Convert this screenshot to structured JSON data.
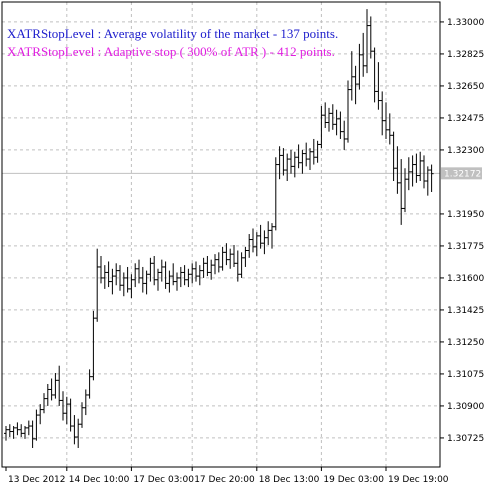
{
  "chart_data": {
    "type": "ohlc",
    "annotations": [
      {
        "text": "XATRStopLevel : Average volatility of the market  - 137 points.",
        "color": "#1c1ccc"
      },
      {
        "text": "XATRStopLevel : Adaptive stop ( 300% of ATR ) - 412 points.",
        "color": "#e01ee0"
      }
    ],
    "ylim": [
      1.30566,
      1.33109
    ],
    "yticks": [
      {
        "value": 1.33,
        "label": "1.33000"
      },
      {
        "value": 1.32825,
        "label": "1.32825"
      },
      {
        "value": 1.3265,
        "label": "1.32650"
      },
      {
        "value": 1.32475,
        "label": "1.32475"
      },
      {
        "value": 1.323,
        "label": "1.32300"
      },
      {
        "value": 1.3195,
        "label": "1.31950"
      },
      {
        "value": 1.31775,
        "label": "1.31775"
      },
      {
        "value": 1.316,
        "label": "1.31600"
      },
      {
        "value": 1.31425,
        "label": "1.31425"
      },
      {
        "value": 1.3125,
        "label": "1.31250"
      },
      {
        "value": 1.31075,
        "label": "1.31075"
      },
      {
        "value": 1.309,
        "label": "1.30900"
      },
      {
        "value": 1.30725,
        "label": "1.30725"
      }
    ],
    "current_price": 1.32172,
    "grid": true,
    "color": "#000000",
    "categories": [
      "13 Dec 2012",
      null,
      null,
      null,
      null,
      null,
      null,
      null,
      null,
      null,
      null,
      null,
      null,
      null,
      null,
      null,
      "14 Dec 10:00",
      null,
      null,
      null,
      null,
      null,
      null,
      null,
      null,
      null,
      null,
      null,
      null,
      null,
      null,
      null,
      null,
      "17 Dec 03:00",
      null,
      null,
      null,
      null,
      null,
      null,
      null,
      null,
      null,
      null,
      null,
      null,
      null,
      null,
      null,
      "17 Dec 20:00",
      null,
      null,
      null,
      null,
      null,
      null,
      null,
      null,
      null,
      null,
      null,
      null,
      null,
      null,
      null,
      null,
      "18 Dec 13:00",
      null,
      null,
      null,
      null,
      null,
      null,
      null,
      null,
      null,
      null,
      null,
      null,
      null,
      null,
      null,
      null,
      "19 Dec 03:00",
      null,
      null,
      null,
      null,
      null,
      null,
      null,
      null,
      null,
      null,
      null,
      null,
      null,
      null,
      null,
      null,
      "19 Dec 19:00",
      null,
      null,
      null,
      null,
      null,
      null,
      null,
      null,
      null,
      null,
      null,
      null
    ],
    "bars": [
      [
        1.3075,
        1.3079,
        1.3071,
        1.3077
      ],
      [
        1.3077,
        1.308,
        1.3073,
        1.3076
      ],
      [
        1.3076,
        1.3079,
        1.3072,
        1.3078
      ],
      [
        1.3078,
        1.3081,
        1.3074,
        1.3077
      ],
      [
        1.3077,
        1.308,
        1.3073,
        1.3075
      ],
      [
        1.3075,
        1.3079,
        1.3072,
        1.3078
      ],
      [
        1.3078,
        1.3082,
        1.3074,
        1.3079
      ],
      [
        1.3079,
        1.3082,
        1.3067,
        1.3072
      ],
      [
        1.3072,
        1.3088,
        1.3071,
        1.3085
      ],
      [
        1.3085,
        1.3091,
        1.308,
        1.3088
      ],
      [
        1.3088,
        1.3097,
        1.3086,
        1.3094
      ],
      [
        1.3094,
        1.3102,
        1.309,
        1.3099
      ],
      [
        1.3099,
        1.3105,
        1.3093,
        1.3096
      ],
      [
        1.3096,
        1.3108,
        1.3094,
        1.3104
      ],
      [
        1.3104,
        1.3112,
        1.309,
        1.3093
      ],
      [
        1.3093,
        1.3098,
        1.3082,
        1.3086
      ],
      [
        1.3086,
        1.3095,
        1.308,
        1.3091
      ],
      [
        1.3091,
        1.3094,
        1.3076,
        1.3079
      ],
      [
        1.3079,
        1.3085,
        1.3069,
        1.3073
      ],
      [
        1.3073,
        1.3083,
        1.3067,
        1.308
      ],
      [
        1.308,
        1.3092,
        1.3078,
        1.3089
      ],
      [
        1.3089,
        1.3099,
        1.3085,
        1.3096
      ],
      [
        1.3096,
        1.311,
        1.3094,
        1.3106
      ],
      [
        1.3106,
        1.3142,
        1.3104,
        1.3138
      ],
      [
        1.3138,
        1.3176,
        1.3136,
        1.3166
      ],
      [
        1.3166,
        1.3172,
        1.3157,
        1.316
      ],
      [
        1.316,
        1.3167,
        1.3154,
        1.3163
      ],
      [
        1.3163,
        1.3169,
        1.3155,
        1.3158
      ],
      [
        1.3158,
        1.3165,
        1.3151,
        1.3161
      ],
      [
        1.3161,
        1.3168,
        1.3156,
        1.3164
      ],
      [
        1.3164,
        1.3167,
        1.3153,
        1.3156
      ],
      [
        1.3156,
        1.3163,
        1.315,
        1.316
      ],
      [
        1.316,
        1.3166,
        1.3152,
        1.3154
      ],
      [
        1.3154,
        1.3162,
        1.3149,
        1.3159
      ],
      [
        1.3159,
        1.3168,
        1.3155,
        1.3165
      ],
      [
        1.3165,
        1.317,
        1.3157,
        1.316
      ],
      [
        1.316,
        1.3166,
        1.3152,
        1.3157
      ],
      [
        1.3157,
        1.3164,
        1.3151,
        1.3162
      ],
      [
        1.3162,
        1.3171,
        1.3158,
        1.3168
      ],
      [
        1.3168,
        1.3172,
        1.3156,
        1.3159
      ],
      [
        1.3159,
        1.3165,
        1.3153,
        1.3163
      ],
      [
        1.3163,
        1.317,
        1.3158,
        1.3166
      ],
      [
        1.3166,
        1.3169,
        1.3154,
        1.3157
      ],
      [
        1.3157,
        1.3164,
        1.3152,
        1.3161
      ],
      [
        1.3161,
        1.3168,
        1.3156,
        1.3158
      ],
      [
        1.3158,
        1.3163,
        1.3153,
        1.316
      ],
      [
        1.316,
        1.3166,
        1.3155,
        1.3163
      ],
      [
        1.3163,
        1.3167,
        1.3156,
        1.3159
      ],
      [
        1.3159,
        1.3165,
        1.3155,
        1.3162
      ],
      [
        1.3162,
        1.3168,
        1.3157,
        1.3165
      ],
      [
        1.3165,
        1.3169,
        1.3158,
        1.3161
      ],
      [
        1.3161,
        1.3167,
        1.3156,
        1.3164
      ],
      [
        1.3164,
        1.3171,
        1.316,
        1.3168
      ],
      [
        1.3168,
        1.3172,
        1.3161,
        1.3163
      ],
      [
        1.3163,
        1.317,
        1.3159,
        1.3167
      ],
      [
        1.3167,
        1.3173,
        1.3162,
        1.317
      ],
      [
        1.317,
        1.3174,
        1.3163,
        1.3166
      ],
      [
        1.3166,
        1.3177,
        1.3164,
        1.3174
      ],
      [
        1.3174,
        1.3179,
        1.3167,
        1.317
      ],
      [
        1.317,
        1.3176,
        1.3165,
        1.3173
      ],
      [
        1.3173,
        1.3178,
        1.3166,
        1.3168
      ],
      [
        1.3168,
        1.3175,
        1.3158,
        1.3162
      ],
      [
        1.3162,
        1.3174,
        1.316,
        1.3171
      ],
      [
        1.3171,
        1.3177,
        1.3166,
        1.3175
      ],
      [
        1.3175,
        1.3184,
        1.3171,
        1.3181
      ],
      [
        1.3181,
        1.3187,
        1.3174,
        1.3177
      ],
      [
        1.3177,
        1.3185,
        1.3172,
        1.3183
      ],
      [
        1.3183,
        1.3189,
        1.3176,
        1.3179
      ],
      [
        1.3179,
        1.3186,
        1.3173,
        1.3182
      ],
      [
        1.3182,
        1.3191,
        1.3178,
        1.3186
      ],
      [
        1.3186,
        1.319,
        1.3176,
        1.3188
      ],
      [
        1.3188,
        1.3226,
        1.3186,
        1.3222
      ],
      [
        1.3222,
        1.3232,
        1.3214,
        1.3227
      ],
      [
        1.3227,
        1.3231,
        1.3216,
        1.3219
      ],
      [
        1.3219,
        1.3228,
        1.3213,
        1.3225
      ],
      [
        1.3225,
        1.323,
        1.3217,
        1.3221
      ],
      [
        1.3221,
        1.3229,
        1.3215,
        1.3226
      ],
      [
        1.3226,
        1.3233,
        1.322,
        1.3223
      ],
      [
        1.3223,
        1.323,
        1.3217,
        1.3228
      ],
      [
        1.3228,
        1.3234,
        1.3221,
        1.3225
      ],
      [
        1.3225,
        1.3231,
        1.3219,
        1.3229
      ],
      [
        1.3229,
        1.3236,
        1.3222,
        1.3226
      ],
      [
        1.3226,
        1.3235,
        1.3223,
        1.3233
      ],
      [
        1.3233,
        1.3254,
        1.3231,
        1.3249
      ],
      [
        1.3249,
        1.3256,
        1.3242,
        1.3245
      ],
      [
        1.3245,
        1.3253,
        1.324,
        1.325
      ],
      [
        1.325,
        1.3255,
        1.3241,
        1.3244
      ],
      [
        1.3244,
        1.3252,
        1.3238,
        1.3247
      ],
      [
        1.3247,
        1.3251,
        1.3236,
        1.324
      ],
      [
        1.324,
        1.3246,
        1.323,
        1.3236
      ],
      [
        1.3236,
        1.3268,
        1.3234,
        1.3263
      ],
      [
        1.3263,
        1.3284,
        1.3257,
        1.327
      ],
      [
        1.327,
        1.3276,
        1.3255,
        1.3266
      ],
      [
        1.3266,
        1.3288,
        1.3263,
        1.3282
      ],
      [
        1.3282,
        1.3294,
        1.327,
        1.3276
      ],
      [
        1.3276,
        1.3307,
        1.3272,
        1.3298
      ],
      [
        1.3298,
        1.3303,
        1.328,
        1.3284
      ],
      [
        1.3284,
        1.3286,
        1.3256,
        1.3262
      ],
      [
        1.3262,
        1.3278,
        1.3252,
        1.3257
      ],
      [
        1.3257,
        1.3262,
        1.3238,
        1.3246
      ],
      [
        1.3246,
        1.3256,
        1.3236,
        1.3241
      ],
      [
        1.3241,
        1.325,
        1.3233,
        1.3238
      ],
      [
        1.3238,
        1.324,
        1.3213,
        1.322
      ],
      [
        1.322,
        1.3232,
        1.3206,
        1.3212
      ],
      [
        1.3212,
        1.3225,
        1.3189,
        1.3198
      ],
      [
        1.3198,
        1.322,
        1.3196,
        1.3214
      ],
      [
        1.3214,
        1.3226,
        1.3208,
        1.3218
      ],
      [
        1.3218,
        1.3227,
        1.321,
        1.3222
      ],
      [
        1.3222,
        1.3228,
        1.3212,
        1.3216
      ],
      [
        1.3216,
        1.3229,
        1.3213,
        1.3224
      ],
      [
        1.3224,
        1.3227,
        1.3209,
        1.3213
      ],
      [
        1.3213,
        1.3221,
        1.3205,
        1.3219
      ],
      [
        1.3219,
        1.3222,
        1.3207,
        1.3217
      ]
    ]
  }
}
